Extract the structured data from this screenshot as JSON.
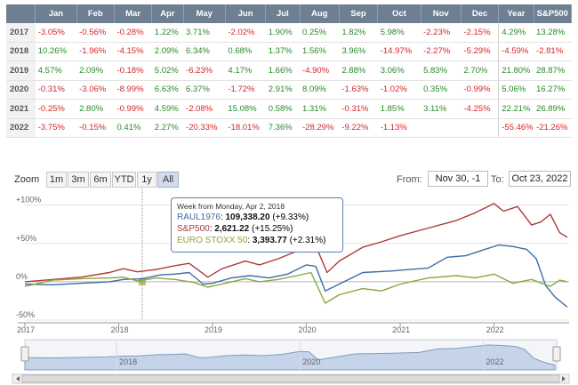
{
  "table": {
    "columns": [
      "",
      "Jan",
      "Feb",
      "Mar",
      "Apr",
      "May",
      "Jun",
      "Jul",
      "Aug",
      "Sep",
      "Oct",
      "Nov",
      "Dec",
      "Year",
      "S&P500"
    ],
    "rows": [
      {
        "year": "2017",
        "cells": [
          "-3.05%",
          "-0.56%",
          "-0.28%",
          "1.22%",
          "3.71%",
          "-2.02%",
          "1.90%",
          "0.25%",
          "1.82%",
          "5.98%",
          "-2.23%",
          "-2.15%",
          "4.29%",
          "13.28%"
        ]
      },
      {
        "year": "2018",
        "cells": [
          "10.26%",
          "-1.96%",
          "-4.15%",
          "2.09%",
          "6.34%",
          "0.68%",
          "1.37%",
          "1.56%",
          "3.96%",
          "-14.97%",
          "-2.27%",
          "-5.29%",
          "-4.59%",
          "-2.81%"
        ]
      },
      {
        "year": "2019",
        "cells": [
          "4.57%",
          "2.09%",
          "-0.18%",
          "5.02%",
          "-6.23%",
          "4.17%",
          "1.66%",
          "-4.90%",
          "2.88%",
          "3.06%",
          "5.83%",
          "2.70%",
          "21.80%",
          "28.87%"
        ]
      },
      {
        "year": "2020",
        "cells": [
          "-0.31%",
          "-3.06%",
          "-8.99%",
          "6.63%",
          "6.37%",
          "-1.72%",
          "2.91%",
          "8.09%",
          "-1.63%",
          "-1.02%",
          "0.35%",
          "-0.99%",
          "5.06%",
          "16.27%"
        ]
      },
      {
        "year": "2021",
        "cells": [
          "-0.25%",
          "2.80%",
          "-0.99%",
          "4.59%",
          "-2.08%",
          "15.08%",
          "0.58%",
          "1.31%",
          "-0.31%",
          "1.85%",
          "3.11%",
          "-4.25%",
          "22.21%",
          "26.89%"
        ]
      },
      {
        "year": "2022",
        "cells": [
          "-3.75%",
          "-0.15%",
          "0.41%",
          "2.27%",
          "-20.33%",
          "-18.01%",
          "7.36%",
          "-28.29%",
          "-9.22%",
          "-1.13%",
          "",
          "",
          "-55.46%",
          "-21.26%"
        ]
      }
    ]
  },
  "toolbar": {
    "zoom_label": "Zoom",
    "buttons": [
      "1m",
      "3m",
      "6m",
      "YTD",
      "1y",
      "All"
    ],
    "active": "All",
    "from_label": "From:",
    "from_value": "Nov 30, -1",
    "to_label": "To:",
    "to_value": "Oct 23, 2022"
  },
  "tooltip": {
    "header": "Week from Monday, Apr 2, 2018",
    "rows": [
      {
        "name": "RAUL1976",
        "value": "109,338.20",
        "change": "(+9.33%)",
        "color": "#3d6ea5"
      },
      {
        "name": "S&P500",
        "value": "2,621.22",
        "change": "(+15.25%)",
        "color": "#b03a3a"
      },
      {
        "name": "EURO STOXX 50",
        "value": "3,393.77",
        "change": "(+2.31%)",
        "color": "#8ca63a"
      }
    ]
  },
  "chart_data": {
    "type": "line",
    "x_ticks": [
      "2017",
      "2018",
      "2019",
      "2020",
      "2021",
      "2022"
    ],
    "y_ticks": [
      "+100%",
      "+50%",
      "0%",
      "-50%"
    ],
    "ylim": [
      -50,
      110
    ],
    "xlim": [
      2017.0,
      2022.8
    ],
    "series": [
      {
        "name": "RAUL1976",
        "color": "#3d6ea5",
        "points": [
          [
            2017.0,
            -3
          ],
          [
            2017.3,
            -4
          ],
          [
            2017.6,
            -2
          ],
          [
            2017.9,
            0
          ],
          [
            2018.05,
            3
          ],
          [
            2018.25,
            4
          ],
          [
            2018.45,
            9
          ],
          [
            2018.6,
            10
          ],
          [
            2018.75,
            12
          ],
          [
            2018.9,
            -3
          ],
          [
            2019.0,
            -2
          ],
          [
            2019.2,
            5
          ],
          [
            2019.4,
            8
          ],
          [
            2019.6,
            5
          ],
          [
            2019.8,
            10
          ],
          [
            2020.0,
            22
          ],
          [
            2020.1,
            20
          ],
          [
            2020.2,
            -12
          ],
          [
            2020.35,
            -3
          ],
          [
            2020.6,
            12
          ],
          [
            2020.9,
            14
          ],
          [
            2021.0,
            15
          ],
          [
            2021.3,
            18
          ],
          [
            2021.5,
            32
          ],
          [
            2021.7,
            34
          ],
          [
            2021.9,
            42
          ],
          [
            2022.05,
            48
          ],
          [
            2022.2,
            46
          ],
          [
            2022.35,
            42
          ],
          [
            2022.45,
            30
          ],
          [
            2022.55,
            -5
          ],
          [
            2022.65,
            -20
          ],
          [
            2022.78,
            -33
          ]
        ]
      },
      {
        "name": "S&P500",
        "color": "#b03a3a",
        "points": [
          [
            2017.0,
            0
          ],
          [
            2017.3,
            3
          ],
          [
            2017.6,
            6
          ],
          [
            2017.9,
            12
          ],
          [
            2018.05,
            17
          ],
          [
            2018.2,
            13
          ],
          [
            2018.4,
            16
          ],
          [
            2018.6,
            21
          ],
          [
            2018.75,
            24
          ],
          [
            2018.95,
            6
          ],
          [
            2019.1,
            17
          ],
          [
            2019.35,
            27
          ],
          [
            2019.5,
            22
          ],
          [
            2019.7,
            30
          ],
          [
            2019.9,
            40
          ],
          [
            2020.1,
            47
          ],
          [
            2020.22,
            12
          ],
          [
            2020.35,
            27
          ],
          [
            2020.6,
            45
          ],
          [
            2020.8,
            52
          ],
          [
            2021.0,
            60
          ],
          [
            2021.3,
            70
          ],
          [
            2021.6,
            80
          ],
          [
            2021.8,
            90
          ],
          [
            2022.0,
            102
          ],
          [
            2022.1,
            92
          ],
          [
            2022.25,
            98
          ],
          [
            2022.4,
            74
          ],
          [
            2022.5,
            78
          ],
          [
            2022.6,
            88
          ],
          [
            2022.7,
            64
          ],
          [
            2022.78,
            58
          ]
        ]
      },
      {
        "name": "EURO STOXX 50",
        "color": "#8ca63a",
        "points": [
          [
            2017.0,
            -6
          ],
          [
            2017.3,
            2
          ],
          [
            2017.6,
            4
          ],
          [
            2017.9,
            5
          ],
          [
            2018.05,
            6
          ],
          [
            2018.2,
            1
          ],
          [
            2018.4,
            5
          ],
          [
            2018.6,
            3
          ],
          [
            2018.8,
            -1
          ],
          [
            2018.95,
            -7
          ],
          [
            2019.1,
            -3
          ],
          [
            2019.35,
            4
          ],
          [
            2019.5,
            0
          ],
          [
            2019.7,
            3
          ],
          [
            2019.9,
            8
          ],
          [
            2020.05,
            12
          ],
          [
            2020.2,
            -28
          ],
          [
            2020.35,
            -17
          ],
          [
            2020.6,
            -9
          ],
          [
            2020.8,
            -12
          ],
          [
            2021.0,
            -3
          ],
          [
            2021.3,
            5
          ],
          [
            2021.6,
            8
          ],
          [
            2021.8,
            5
          ],
          [
            2022.0,
            10
          ],
          [
            2022.2,
            -2
          ],
          [
            2022.4,
            3
          ],
          [
            2022.6,
            -6
          ],
          [
            2022.7,
            2
          ],
          [
            2022.78,
            0
          ]
        ]
      }
    ],
    "tooltip_x": 2018.25
  },
  "navigator": {
    "ticks": [
      "2018",
      "2020",
      "2022"
    ]
  }
}
